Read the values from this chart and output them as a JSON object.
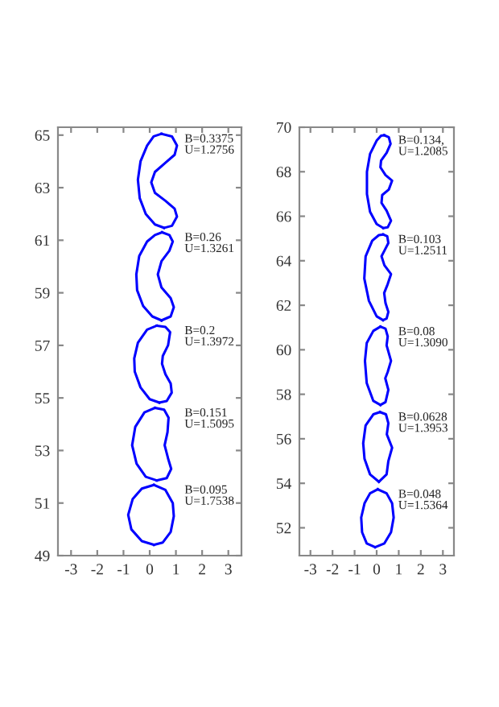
{
  "chart_data": [
    {
      "type": "line",
      "orientation": "horizontal",
      "xlim": [
        -3.5,
        3.5
      ],
      "ylim": [
        49,
        65.3
      ],
      "xticks": [
        -3,
        -2,
        -1,
        0,
        1,
        2,
        3
      ],
      "yticks": [
        49,
        51,
        53,
        55,
        57,
        59,
        61,
        63,
        65
      ],
      "grid": false,
      "legend": false,
      "marker": "none",
      "line_style": "solid",
      "series": [
        {
          "color": "#0000ff",
          "x": [
            65.05,
            64.95,
            64.6,
            64.25,
            63.95,
            63.6,
            63.2,
            62.8,
            62.5,
            62.2,
            61.9,
            61.55,
            61.47
          ],
          "values": [
            0.45,
            0.85,
            1.04,
            0.95,
            0.6,
            0.2,
            0.06,
            0.2,
            0.6,
            0.95,
            1.04,
            0.85,
            0.55
          ]
        },
        {
          "color": "#0000ff",
          "x": [
            65.05,
            64.95,
            64.6,
            64.0,
            63.3,
            62.6,
            62.0,
            61.6,
            61.47
          ],
          "values": [
            0.45,
            0.15,
            -0.1,
            -0.35,
            -0.45,
            -0.38,
            -0.15,
            0.2,
            0.55
          ]
        },
        {
          "color": "#0000ff",
          "x": [
            61.3,
            61.2,
            60.95,
            60.6,
            60.2,
            59.7,
            59.2,
            58.8,
            58.45,
            58.1,
            57.95
          ],
          "values": [
            0.47,
            0.75,
            0.88,
            0.75,
            0.45,
            0.31,
            0.45,
            0.8,
            0.92,
            0.8,
            0.45
          ]
        },
        {
          "color": "#0000ff",
          "x": [
            61.3,
            61.2,
            60.95,
            60.4,
            59.7,
            59.1,
            58.5,
            58.1,
            57.95
          ],
          "values": [
            0.47,
            0.2,
            -0.1,
            -0.4,
            -0.51,
            -0.48,
            -0.25,
            0.1,
            0.45
          ]
        },
        {
          "color": "#0000ff",
          "x": [
            57.75,
            57.7,
            57.5,
            57.0,
            56.6,
            56.3,
            55.9,
            55.55,
            55.2,
            54.88,
            54.82
          ],
          "values": [
            0.27,
            0.6,
            0.78,
            0.7,
            0.5,
            0.47,
            0.6,
            0.8,
            0.84,
            0.65,
            0.37
          ]
        },
        {
          "color": "#0000ff",
          "x": [
            57.75,
            57.6,
            57.1,
            56.5,
            56.0,
            55.4,
            54.95,
            54.82
          ],
          "values": [
            0.27,
            -0.1,
            -0.45,
            -0.59,
            -0.57,
            -0.35,
            0.0,
            0.37
          ]
        },
        {
          "color": "#0000ff",
          "x": [
            54.62,
            54.55,
            54.25,
            53.7,
            53.2,
            52.7,
            52.3,
            51.95,
            51.86
          ],
          "values": [
            0.2,
            0.55,
            0.72,
            0.68,
            0.57,
            0.7,
            0.82,
            0.65,
            0.27
          ]
        },
        {
          "color": "#0000ff",
          "x": [
            54.62,
            54.45,
            53.9,
            53.2,
            52.5,
            52.0,
            51.86
          ],
          "values": [
            0.2,
            -0.2,
            -0.55,
            -0.67,
            -0.5,
            -0.15,
            0.27
          ]
        },
        {
          "color": "#0000ff",
          "x": [
            51.69,
            51.5,
            51.0,
            50.5,
            49.9,
            49.5,
            49.41
          ],
          "values": [
            0.16,
            0.6,
            0.88,
            0.92,
            0.8,
            0.5,
            0.16
          ]
        },
        {
          "color": "#0000ff",
          "x": [
            51.69,
            51.55,
            51.15,
            50.55,
            50.0,
            49.55,
            49.41
          ],
          "values": [
            0.16,
            -0.3,
            -0.65,
            -0.82,
            -0.7,
            -0.3,
            0.16
          ]
        }
      ],
      "annotations": [
        "B=0.3375\nU=1.2756",
        "B=0.26\nU=1.3261",
        "B=0.2\nU=1.3972",
        "B=0.151\nU=1.5095",
        "B=0.095\nU=1.7538"
      ]
    },
    {
      "type": "line",
      "orientation": "horizontal",
      "xlim": [
        -3.5,
        3.5
      ],
      "ylim": [
        50.75,
        70
      ],
      "xticks": [
        -3,
        -2,
        -1,
        0,
        1,
        2,
        3
      ],
      "yticks": [
        52,
        54,
        56,
        58,
        60,
        62,
        64,
        66,
        68,
        70
      ],
      "grid": false,
      "legend": false,
      "marker": "none",
      "line_style": "solid",
      "series": [
        {
          "color": "#0000ff",
          "x": [
            69.64,
            69.55,
            69.25,
            68.85,
            68.5,
            68.2,
            67.85,
            67.6,
            67.2,
            66.95,
            66.6,
            66.25,
            65.8,
            65.5,
            65.47
          ],
          "values": [
            0.34,
            0.55,
            0.63,
            0.45,
            0.2,
            0.17,
            0.4,
            0.7,
            0.55,
            0.25,
            0.22,
            0.45,
            0.65,
            0.5,
            0.3
          ]
        },
        {
          "color": "#0000ff",
          "x": [
            69.64,
            69.62,
            69.4,
            68.8,
            68.0,
            67.0,
            66.2,
            65.65,
            65.47
          ],
          "values": [
            0.34,
            0.2,
            0.0,
            -0.3,
            -0.44,
            -0.44,
            -0.3,
            0.0,
            0.3
          ]
        },
        {
          "color": "#0000ff",
          "x": [
            65.18,
            65.1,
            64.8,
            64.45,
            64.2,
            63.8,
            63.4,
            62.95,
            62.55,
            62.1,
            61.7,
            61.4,
            61.33
          ],
          "values": [
            0.29,
            0.48,
            0.53,
            0.35,
            0.22,
            0.35,
            0.65,
            0.5,
            0.34,
            0.4,
            0.53,
            0.45,
            0.29
          ]
        },
        {
          "color": "#0000ff",
          "x": [
            65.18,
            65.15,
            64.9,
            64.2,
            63.2,
            62.2,
            61.5,
            61.33
          ],
          "values": [
            0.29,
            0.1,
            -0.2,
            -0.5,
            -0.56,
            -0.35,
            0.0,
            0.29
          ]
        },
        {
          "color": "#0000ff",
          "x": [
            61.04,
            60.95,
            60.6,
            60.2,
            59.5,
            59.0,
            58.72,
            58.2,
            57.65,
            57.52
          ],
          "values": [
            0.17,
            0.4,
            0.5,
            0.45,
            0.65,
            0.5,
            0.39,
            0.53,
            0.4,
            0.17
          ]
        },
        {
          "color": "#0000ff",
          "x": [
            61.04,
            60.85,
            60.3,
            59.5,
            58.5,
            57.7,
            57.52
          ],
          "values": [
            0.17,
            -0.15,
            -0.45,
            -0.53,
            -0.45,
            -0.15,
            0.17
          ]
        },
        {
          "color": "#0000ff",
          "x": [
            57.2,
            57.1,
            56.7,
            56.2,
            55.6,
            55.0,
            54.4,
            54.07
          ],
          "values": [
            0.15,
            0.42,
            0.53,
            0.46,
            0.7,
            0.53,
            0.45,
            0.1
          ]
        },
        {
          "color": "#0000ff",
          "x": [
            57.2,
            57.1,
            56.6,
            55.8,
            55.1,
            54.4,
            54.07
          ],
          "values": [
            0.15,
            -0.15,
            -0.5,
            -0.61,
            -0.55,
            -0.3,
            0.1
          ]
        },
        {
          "color": "#0000ff",
          "x": [
            53.73,
            53.55,
            53.1,
            52.46,
            51.8,
            51.3,
            51.13
          ],
          "values": [
            0.05,
            0.45,
            0.7,
            0.77,
            0.65,
            0.35,
            -0.07
          ]
        },
        {
          "color": "#0000ff",
          "x": [
            53.73,
            53.55,
            53.1,
            52.46,
            51.8,
            51.3,
            51.13
          ],
          "values": [
            0.05,
            -0.3,
            -0.55,
            -0.7,
            -0.66,
            -0.45,
            -0.07
          ]
        }
      ],
      "annotations": [
        "B=0.134,\nU=1.2085",
        "B=0.103\nU=1.2511",
        "B=0.08\nU=1.3090",
        "B=0.0628\nU=1.3953",
        "B=0.048\nU=1.5364"
      ]
    }
  ]
}
